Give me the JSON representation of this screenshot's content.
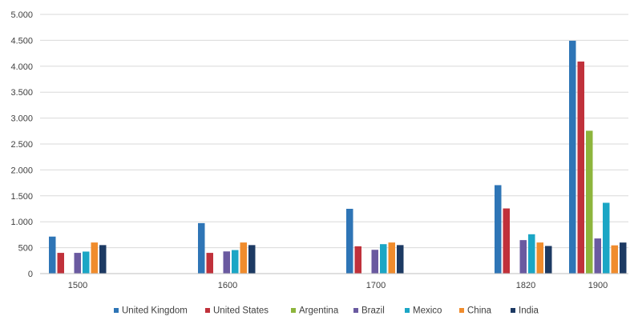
{
  "chart_data": {
    "type": "bar",
    "title": "",
    "xlabel": "",
    "ylabel": "",
    "categories": [
      "1500",
      "1600",
      "1700",
      "1820",
      "1900"
    ],
    "ylim": [
      0,
      5000
    ],
    "yticks": [
      0,
      500,
      1000,
      1500,
      2000,
      2500,
      3000,
      3500,
      4000,
      4500,
      5000
    ],
    "ytick_labels": [
      "0",
      "500",
      "1.000",
      "1.500",
      "2.000",
      "2.500",
      "3.000",
      "3.500",
      "4.000",
      "4.500",
      "5.000"
    ],
    "grid": true,
    "legend_position": "bottom",
    "series": [
      {
        "name": "United Kingdom",
        "color": "#2e75b6",
        "values": [
          714,
          974,
          1250,
          1706,
          4492
        ]
      },
      {
        "name": "United States",
        "color": "#c0313b",
        "values": [
          400,
          400,
          527,
          1257,
          4091
        ]
      },
      {
        "name": "Argentina",
        "color": "#8db53c",
        "values": [
          null,
          null,
          null,
          null,
          2756
        ]
      },
      {
        "name": "Brazil",
        "color": "#6a5aa0",
        "values": [
          400,
          428,
          459,
          646,
          678
        ]
      },
      {
        "name": "Mexico",
        "color": "#1ba6c5",
        "values": [
          425,
          454,
          568,
          759,
          1366
        ]
      },
      {
        "name": "China",
        "color": "#f08c2d",
        "values": [
          600,
          600,
          600,
          600,
          545
        ]
      },
      {
        "name": "India",
        "color": "#1d3a63",
        "values": [
          550,
          550,
          550,
          533,
          599
        ]
      }
    ]
  }
}
